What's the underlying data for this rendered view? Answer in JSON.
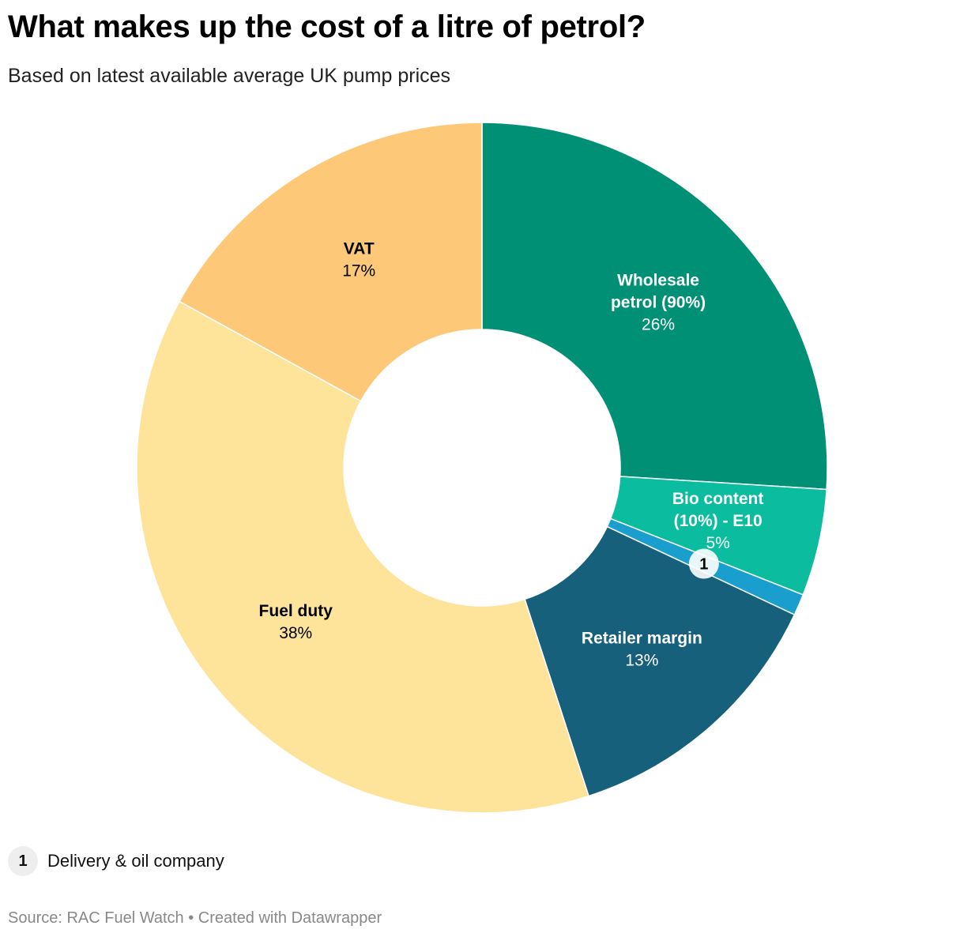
{
  "title": "What makes up the cost of a litre of petrol?",
  "subtitle": "Based on latest available average UK pump prices",
  "chart_data": {
    "type": "pie",
    "donut": true,
    "unit": "%",
    "slices": [
      {
        "name": "Wholesale petrol (90%)",
        "lines": [
          "Wholesale",
          "petrol (90%)"
        ],
        "value": 26,
        "label": "26%",
        "color": "#009075",
        "text_color": "#ffffff"
      },
      {
        "name": "Bio content (10%) - E10",
        "lines": [
          "Bio content",
          "(10%) - E10"
        ],
        "value": 5,
        "label": "5%",
        "color": "#0bbc9e",
        "text_color": "#ffffff"
      },
      {
        "name": "Delivery & oil company",
        "marker": "1",
        "value": 1,
        "color": "#1a9ece"
      },
      {
        "name": "Retailer margin",
        "lines": [
          "Retailer margin"
        ],
        "value": 13,
        "label": "13%",
        "color": "#17607c",
        "text_color": "#ffffff"
      },
      {
        "name": "Fuel duty",
        "lines": [
          "Fuel duty"
        ],
        "value": 38,
        "label": "38%",
        "color": "#fee39b",
        "text_color": "#000000"
      },
      {
        "name": "VAT",
        "lines": [
          "VAT"
        ],
        "value": 17,
        "label": "17%",
        "color": "#fdc877",
        "text_color": "#000000"
      }
    ]
  },
  "legend": {
    "marker": "1",
    "text": "Delivery & oil company"
  },
  "source": "Source: RAC Fuel Watch • Created with Datawrapper"
}
